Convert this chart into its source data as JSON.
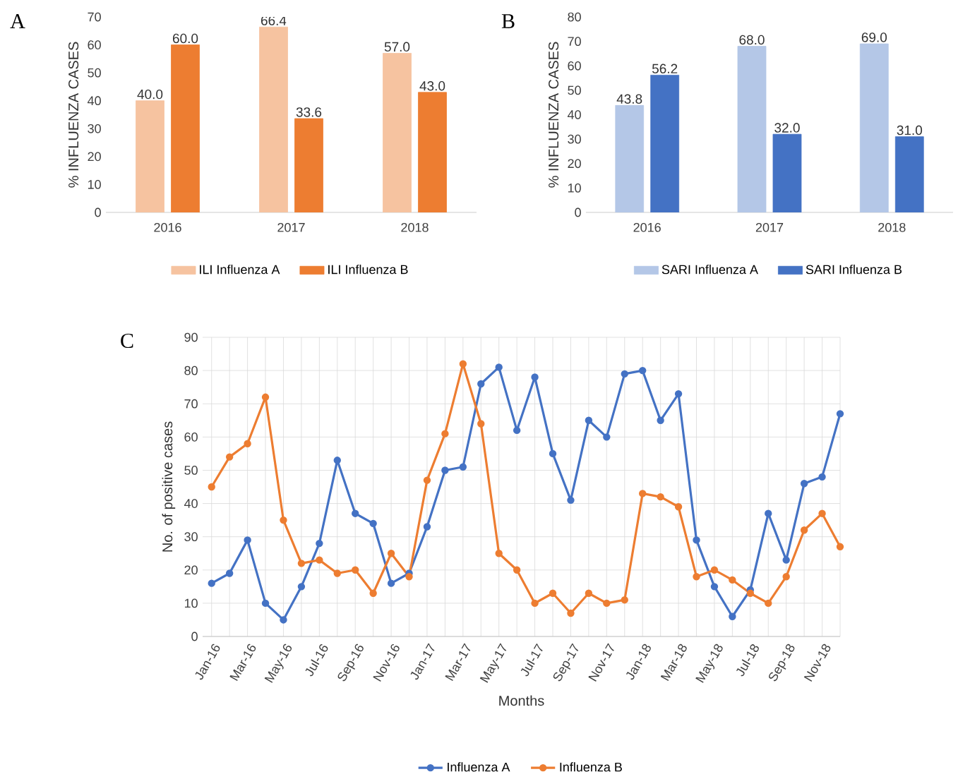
{
  "chart_data": [
    {
      "type": "bar",
      "title": "A",
      "categories": [
        "2016",
        "2017",
        "2018"
      ],
      "ylabel": "% INFLUENZA CASES",
      "ylim": [
        0,
        70
      ],
      "yticks": [
        0,
        10,
        20,
        30,
        40,
        50,
        60,
        70
      ],
      "legend": "bottom",
      "grid": false,
      "series": [
        {
          "name": "ILI Influenza A",
          "color": "#f6c3a0",
          "values": [
            40.0,
            66.4,
            57.0
          ],
          "value_labels": [
            "40.0",
            "66.4",
            "57.0"
          ]
        },
        {
          "name": "ILI Influenza B",
          "color": "#ed7d31",
          "values": [
            60.0,
            33.6,
            43.0
          ],
          "value_labels": [
            "60.0",
            "33.6",
            "43.0"
          ]
        }
      ]
    },
    {
      "type": "bar",
      "title": "B",
      "categories": [
        "2016",
        "2017",
        "2018"
      ],
      "ylabel": "% INFLUENZA CASES",
      "ylim": [
        0,
        80
      ],
      "yticks": [
        0,
        10,
        20,
        30,
        40,
        50,
        60,
        70,
        80
      ],
      "legend": "bottom",
      "grid": false,
      "series": [
        {
          "name": "SARI Influenza A",
          "color": "#b4c7e7",
          "values": [
            43.8,
            68.0,
            69.0
          ],
          "value_labels": [
            "43.8",
            "68.0",
            "69.0"
          ]
        },
        {
          "name": "SARI Influenza B",
          "color": "#4472c4",
          "values": [
            56.2,
            32.0,
            31.0
          ],
          "value_labels": [
            "56.2",
            "32.0",
            "31.0"
          ]
        }
      ]
    },
    {
      "type": "line",
      "title": "C",
      "xlabel": "Months",
      "ylabel": "No. of positive cases",
      "ylim": [
        0,
        90
      ],
      "yticks": [
        0,
        10,
        20,
        30,
        40,
        50,
        60,
        70,
        80,
        90
      ],
      "legend": "bottom",
      "grid": true,
      "marker": "circle",
      "line_style": "solid",
      "categories": [
        "Jan-16",
        null,
        "Mar-16",
        null,
        "May-16",
        null,
        "Jul-16",
        null,
        "Sep-16",
        null,
        "Nov-16",
        null,
        "Jan-17",
        null,
        "Mar-17",
        null,
        "May-17",
        null,
        "Jul-17",
        null,
        "Sep-17",
        null,
        "Nov-17",
        null,
        "Jan-18",
        null,
        "Mar-18",
        null,
        "May-18",
        null,
        "Jul-18",
        null,
        "Sep-18",
        null,
        "Nov-18",
        null
      ],
      "series": [
        {
          "name": "Influenza A",
          "color": "#4472c4",
          "values": [
            16,
            19,
            29,
            10,
            5,
            15,
            28,
            53,
            37,
            34,
            16,
            19,
            33,
            50,
            51,
            76,
            81,
            62,
            78,
            55,
            41,
            65,
            60,
            79,
            80,
            65,
            73,
            29,
            15,
            6,
            14,
            37,
            23,
            46,
            48,
            67
          ]
        },
        {
          "name": "Influenza B",
          "color": "#ed7d31",
          "values": [
            45,
            54,
            58,
            72,
            35,
            22,
            23,
            19,
            20,
            13,
            25,
            18,
            47,
            61,
            82,
            64,
            25,
            20,
            10,
            13,
            7,
            13,
            10,
            11,
            43,
            42,
            39,
            18,
            20,
            17,
            13,
            10,
            18,
            32,
            37,
            27
          ]
        }
      ]
    }
  ]
}
